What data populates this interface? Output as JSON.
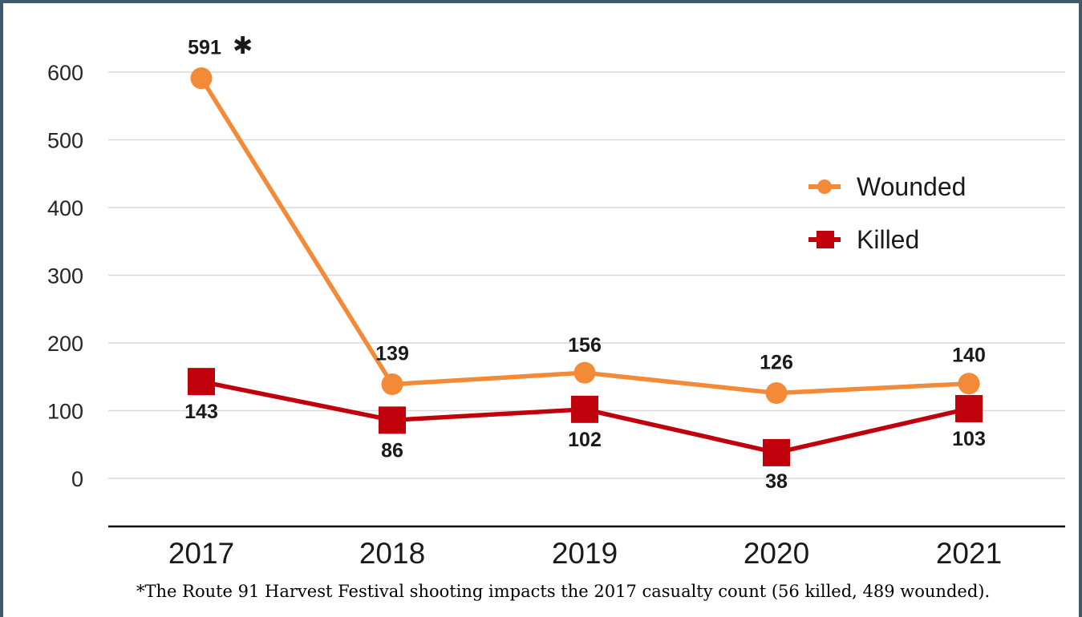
{
  "chart_data": {
    "type": "line",
    "categories": [
      "2017",
      "2018",
      "2019",
      "2020",
      "2021"
    ],
    "series": [
      {
        "name": "Wounded",
        "values": [
          591,
          139,
          156,
          126,
          140
        ],
        "labels": [
          "591",
          "139",
          "156",
          "126",
          "140"
        ],
        "color": "#f28a38",
        "marker": "circle"
      },
      {
        "name": "Killed",
        "values": [
          143,
          86,
          102,
          38,
          103
        ],
        "labels": [
          "143",
          "86",
          "102",
          "38",
          "103"
        ],
        "color": "#c0000b",
        "marker": "square"
      }
    ],
    "yticks": [
      0,
      100,
      200,
      300,
      400,
      500,
      600
    ],
    "ylim": [
      -70,
      600
    ],
    "annotation_mark": "✱",
    "legend_position": "right",
    "grid": true
  },
  "footnote": "*The Route 91 Harvest Festival shooting impacts the 2017 casualty count (56 killed, 489 wounded)."
}
